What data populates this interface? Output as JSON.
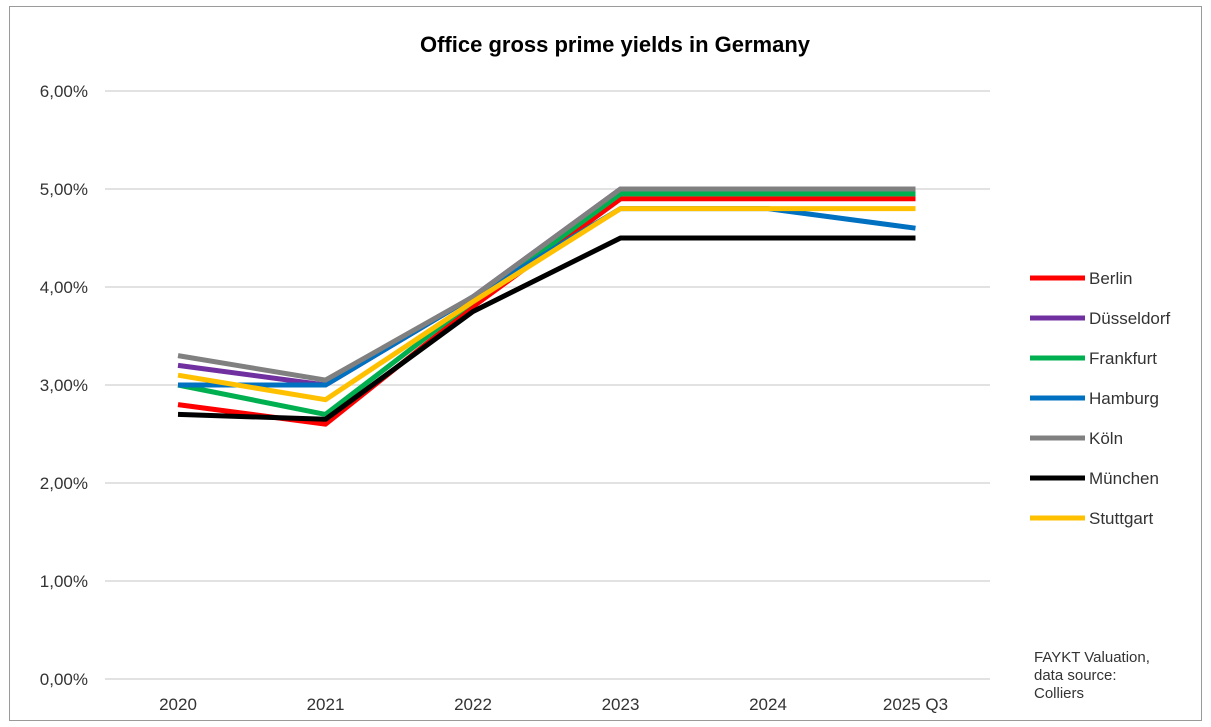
{
  "chart_data": {
    "type": "line",
    "title": "Office gross prime yields in Germany",
    "xlabel": "",
    "ylabel": "",
    "categories": [
      "2020",
      "2021",
      "2022",
      "2023",
      "2024",
      "2025 Q3"
    ],
    "ylim": [
      0,
      6
    ],
    "yticks": [
      {
        "value": 0,
        "label": "0,00%"
      },
      {
        "value": 1,
        "label": "1,00%"
      },
      {
        "value": 2,
        "label": "2,00%"
      },
      {
        "value": 3,
        "label": "3,00%"
      },
      {
        "value": 4,
        "label": "4,00%"
      },
      {
        "value": 5,
        "label": "5,00%"
      },
      {
        "value": 6,
        "label": "6,00%"
      }
    ],
    "grid": true,
    "legend_position": "right",
    "series": [
      {
        "name": "Berlin",
        "color": "#ff0000",
        "values": [
          2.8,
          2.6,
          3.8,
          4.9,
          4.9,
          4.9
        ]
      },
      {
        "name": "Düsseldorf",
        "color": "#7030a0",
        "values": [
          3.2,
          3.0,
          3.9,
          5.0,
          5.0,
          5.0
        ]
      },
      {
        "name": "Frankfurt",
        "color": "#00b050",
        "values": [
          3.0,
          2.7,
          3.85,
          4.95,
          4.95,
          4.95
        ]
      },
      {
        "name": "Hamburg",
        "color": "#0070c0",
        "values": [
          3.0,
          3.0,
          3.9,
          4.8,
          4.8,
          4.6
        ]
      },
      {
        "name": "Köln",
        "color": "#808080",
        "values": [
          3.3,
          3.05,
          3.9,
          5.0,
          5.0,
          5.0
        ]
      },
      {
        "name": "München",
        "color": "#000000",
        "values": [
          2.7,
          2.65,
          3.75,
          4.5,
          4.5,
          4.5
        ]
      },
      {
        "name": "Stuttgart",
        "color": "#ffc000",
        "values": [
          3.1,
          2.85,
          3.85,
          4.8,
          4.8,
          4.8
        ]
      }
    ],
    "source_note": [
      "FAYKT Valuation,",
      "data source:",
      "Colliers"
    ]
  }
}
